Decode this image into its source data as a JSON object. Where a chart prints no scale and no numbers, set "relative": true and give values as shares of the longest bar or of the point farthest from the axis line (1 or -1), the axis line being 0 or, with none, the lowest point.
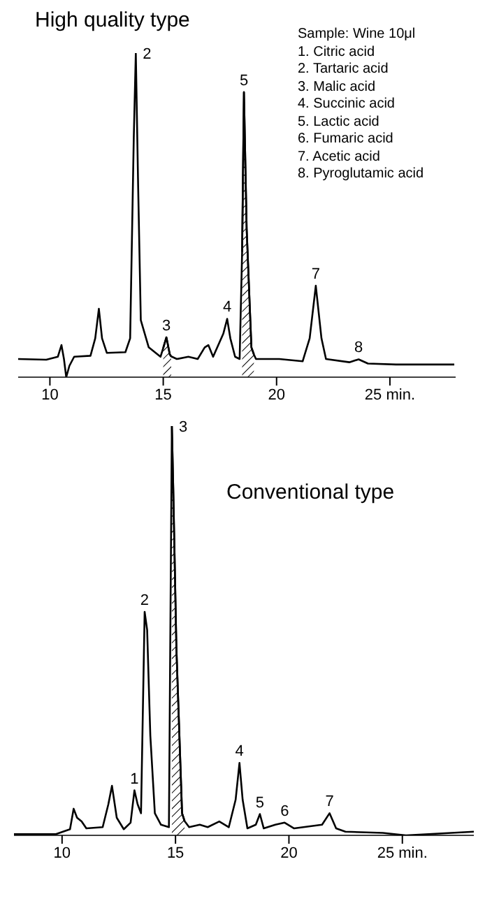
{
  "chart_data": [
    {
      "type": "line",
      "title": "High quality type",
      "relative": true,
      "marker": "none",
      "line_style": "solid",
      "tick_labels": "x",
      "xlim": [
        8.6,
        27.9
      ],
      "xticks": [
        10,
        15,
        20,
        {
          "value": 25,
          "label": "25 min."
        }
      ],
      "x": [
        8.6,
        9.84,
        10.35,
        10.51,
        10.62,
        10.72,
        10.86,
        11.07,
        11.79,
        12.0,
        12.16,
        12.3,
        12.51,
        13.33,
        13.54,
        13.7,
        13.79,
        13.89,
        14.01,
        14.36,
        14.88,
        15.0,
        15.14,
        15.29,
        15.35,
        15.6,
        16.11,
        16.52,
        16.83,
        16.99,
        17.2,
        17.65,
        17.82,
        17.96,
        18.17,
        18.37,
        18.48,
        18.56,
        18.68,
        18.89,
        19.0,
        19.09,
        20.12,
        21.15,
        21.46,
        21.73,
        21.98,
        22.18,
        23.21,
        23.62,
        24.03,
        25.27,
        27.84
      ],
      "series": [
        {
          "color": "#000000",
          "values": [
            0.056,
            0.054,
            0.063,
            0.099,
            0.056,
            0,
            0.035,
            0.063,
            0.066,
            0.12,
            0.211,
            0.12,
            0.075,
            0.077,
            0.12,
            0.739,
            1,
            0.599,
            0.176,
            0.092,
            0.063,
            0.09,
            0.123,
            0.07,
            0.064,
            0.056,
            0.063,
            0.056,
            0.092,
            0.099,
            0.063,
            0.134,
            0.18,
            0.12,
            0.063,
            0.056,
            0.387,
            0.88,
            0.458,
            0.092,
            0.07,
            0.056,
            0.056,
            0.049,
            0.12,
            0.282,
            0.12,
            0.056,
            0.046,
            0.055,
            0.042,
            0.039,
            0.039
          ]
        },
        {
          "type": "area",
          "color": "#000000",
          "x": [
            15.0,
            15.14,
            15.29,
            15.35
          ],
          "values": [
            0.09,
            0.123,
            0.07,
            0.064
          ]
        },
        {
          "type": "area",
          "color": "#000000",
          "x": [
            18.48,
            18.56,
            18.68,
            18.89,
            19.0
          ],
          "values": [
            0.387,
            0.88,
            0.458,
            0.092,
            0.07
          ]
        }
      ],
      "annotations": [
        "Sample: Wine 10μl",
        "1. Citric acid",
        "2. Tartaric acid",
        "3. Malic acid",
        "4. Succinic acid",
        "5. Lactic acid",
        "6. Fumaric acid",
        "7. Acetic acid",
        "8. Pyroglutamic acid",
        {
          "text": "2",
          "x": 13.79,
          "y": 1
        },
        {
          "text": "3",
          "x": 15.14,
          "y": 0.123
        },
        {
          "text": "4",
          "x": 17.82,
          "y": 0.18
        },
        {
          "text": "5",
          "x": 18.56,
          "y": 0.88
        },
        {
          "text": "7",
          "x": 21.73,
          "y": 0.282
        },
        {
          "text": "8",
          "x": 23.62,
          "y": 0.055
        }
      ]
    },
    {
      "type": "line",
      "title": "Conventional type",
      "relative": true,
      "marker": "none",
      "line_style": "solid",
      "tick_labels": "x",
      "xlim": [
        7.88,
        28.15
      ],
      "xticks": [
        10,
        15,
        20,
        {
          "value": 25,
          "label": "25 min."
        }
      ],
      "x": [
        7.88,
        9.73,
        10.35,
        10.51,
        10.66,
        10.86,
        11.07,
        11.79,
        12.04,
        12.2,
        12.41,
        12.72,
        13.02,
        13.19,
        13.33,
        13.48,
        13.64,
        13.75,
        13.89,
        14.09,
        14.36,
        14.71,
        14.84,
        14.9,
        15.04,
        15.29,
        15.4,
        15.6,
        16.07,
        16.42,
        16.93,
        17.35,
        17.65,
        17.82,
        17.96,
        18.17,
        18.54,
        18.72,
        18.89,
        19.4,
        19.81,
        20.23,
        21.46,
        21.79,
        22.08,
        22.49,
        24.14,
        25.16,
        28.15
      ],
      "series": [
        {
          "color": "#000000",
          "values": [
            0.003,
            0.003,
            0.015,
            0.065,
            0.043,
            0.034,
            0.017,
            0.02,
            0.076,
            0.121,
            0.043,
            0.015,
            0.031,
            0.11,
            0.076,
            0.054,
            0.546,
            0.502,
            0.244,
            0.054,
            0.026,
            0.02,
            1,
            0.85,
            0.457,
            0.054,
            0.035,
            0.02,
            0.026,
            0.02,
            0.034,
            0.02,
            0.087,
            0.177,
            0.087,
            0.017,
            0.026,
            0.052,
            0.017,
            0.026,
            0.031,
            0.017,
            0.026,
            0.054,
            0.017,
            0.009,
            0.006,
            0,
            0.009
          ]
        },
        {
          "type": "area",
          "color": "#000000",
          "x": [
            14.84,
            14.9,
            15.04,
            15.29,
            15.4
          ],
          "values": [
            1,
            0.85,
            0.457,
            0.054,
            0.035
          ]
        }
      ],
      "annotations": [
        {
          "text": "1",
          "x": 13.19,
          "y": 0.11
        },
        {
          "text": "2",
          "x": 13.64,
          "y": 0.546
        },
        {
          "text": "3",
          "x": 14.84,
          "y": 1
        },
        {
          "text": "4",
          "x": 17.82,
          "y": 0.177
        },
        {
          "text": "5",
          "x": 18.72,
          "y": 0.052
        },
        {
          "text": "6",
          "x": 19.81,
          "y": 0.031
        },
        {
          "text": "7",
          "x": 21.79,
          "y": 0.054
        }
      ]
    }
  ]
}
